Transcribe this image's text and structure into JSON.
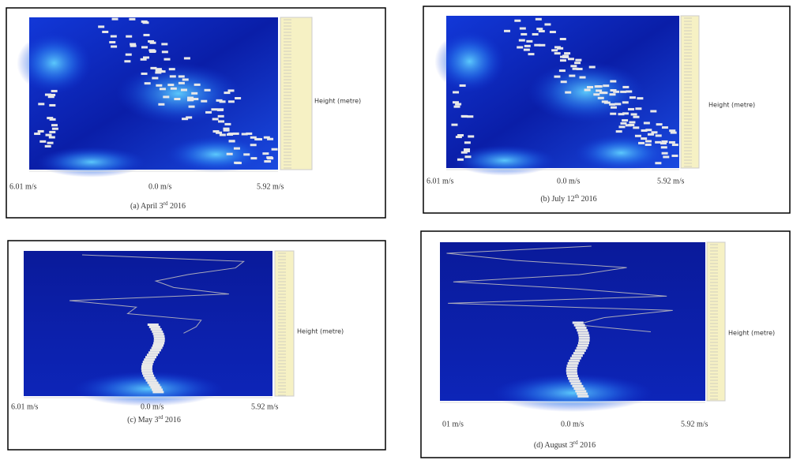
{
  "panels": [
    {
      "left_label": "6.01 m/s",
      "center_label": "0.0 m/s",
      "right_label": "5.92 m/s",
      "height_label": "Height (metre)",
      "caption": {
        "prefix": "(a) April 3",
        "sup": "rd",
        "suffix": " 2016"
      }
    },
    {
      "left_label": "6.01 m/s",
      "center_label": "0.0 m/s",
      "right_label": "5.92 m/s",
      "height_label": "Height (metre)",
      "caption": {
        "prefix": "(b) July 12",
        "sup": "th",
        "suffix": " 2016"
      }
    },
    {
      "left_label": "6.01 m/s",
      "center_label": "0.0 m/s",
      "right_label": "5.92 m/s",
      "height_label": "Height (metre)",
      "caption": {
        "prefix": "(c) May 3",
        "sup": "rd",
        "suffix": " 2016"
      }
    },
    {
      "left_label": "01 m/s",
      "center_label": "0.0 m/s",
      "right_label": "5.92 m/s",
      "height_label": "Height (metre)",
      "caption": {
        "prefix": "(d) August 3",
        "sup": "rd",
        "suffix": " 2016"
      }
    }
  ]
}
